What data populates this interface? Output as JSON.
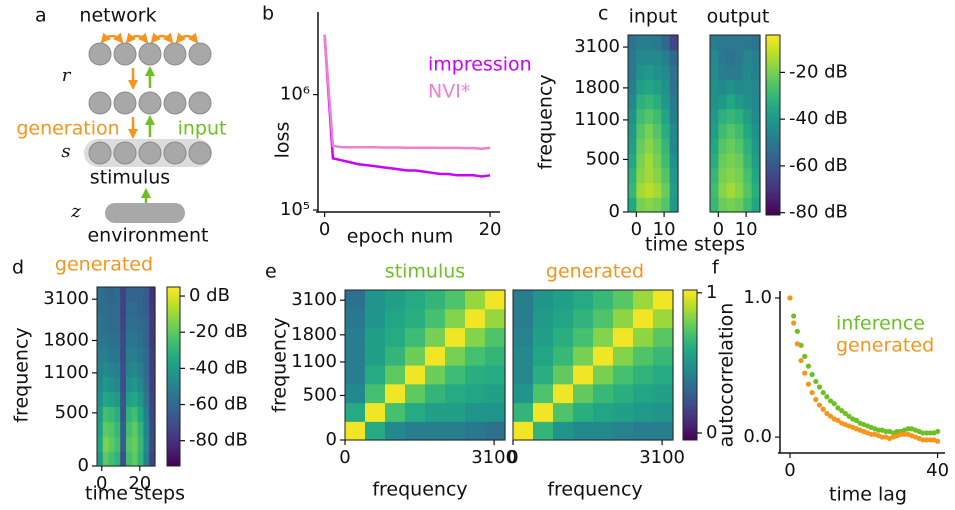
{
  "panels": [
    "a",
    "b",
    "c",
    "d",
    "e",
    "f"
  ],
  "diagram": {
    "network": "network",
    "r": "r",
    "s": "s",
    "z": "z",
    "generation": "generation",
    "input": "input",
    "stimulus": "stimulus",
    "environment": "environment"
  },
  "chart_data": [
    {
      "type": "line",
      "ylabel": "loss",
      "xlabel": "epoch num",
      "yscale": "log",
      "x": [
        0,
        1,
        2,
        3,
        4,
        5,
        6,
        7,
        8,
        9,
        10,
        11,
        12,
        13,
        14,
        15,
        16,
        17,
        18,
        19,
        20
      ],
      "xlim": [
        -0.8,
        21.2
      ],
      "ylim": [
        100000,
        5200000
      ],
      "xticks": [
        0,
        20
      ],
      "yticks": [
        {
          "value": 100000,
          "label": "10⁵"
        },
        {
          "value": 1000000,
          "label": "10⁶"
        }
      ],
      "series": [
        {
          "name": "impression",
          "color": "#cc00ff",
          "values": [
            3300000,
            280000,
            270000,
            260000,
            250000,
            245000,
            240000,
            235000,
            230000,
            225000,
            220000,
            220000,
            215000,
            210000,
            205000,
            205000,
            200000,
            200000,
            200000,
            195000,
            200000
          ]
        },
        {
          "name": "NVI*",
          "color": "#f07fd2",
          "values": [
            3300000,
            360000,
            350000,
            350000,
            350000,
            350000,
            350000,
            348000,
            348000,
            348000,
            347000,
            347000,
            346000,
            346000,
            345000,
            345000,
            345000,
            344000,
            344000,
            340000,
            345000
          ]
        }
      ]
    },
    {
      "type": "heatmap",
      "title": "input",
      "ylabel": "frequency",
      "xlabel": "time steps",
      "yscale": "mel",
      "colormap": "viridis",
      "xlim": [
        -3,
        15
      ],
      "ylim": [
        0,
        3600
      ],
      "xticks": [
        0,
        10
      ],
      "yticks": [
        0,
        500,
        1100,
        1800,
        3100
      ],
      "clim": [
        -81,
        -4
      ],
      "values": [
        [
          -35,
          -20,
          -18,
          -20,
          -25,
          -40
        ],
        [
          -30,
          -15,
          -12,
          -15,
          -22,
          -38
        ],
        [
          -32,
          -18,
          -15,
          -18,
          -25,
          -40
        ],
        [
          -35,
          -20,
          -15,
          -20,
          -28,
          -42
        ],
        [
          -38,
          -22,
          -18,
          -22,
          -30,
          -45
        ],
        [
          -40,
          -25,
          -20,
          -25,
          -33,
          -45
        ],
        [
          -42,
          -28,
          -25,
          -28,
          -36,
          -48
        ],
        [
          -45,
          -32,
          -30,
          -33,
          -40,
          -50
        ],
        [
          -48,
          -38,
          -35,
          -38,
          -42,
          -52
        ],
        [
          -50,
          -42,
          -40,
          -42,
          -45,
          -52
        ],
        [
          -50,
          -45,
          -45,
          -45,
          -48,
          -55
        ],
        [
          -52,
          -48,
          -48,
          -50,
          -55,
          -65
        ]
      ]
    },
    {
      "type": "heatmap",
      "title": "output",
      "yscale": "mel",
      "colormap": "viridis",
      "xlim": [
        -3,
        15
      ],
      "ylim": [
        0,
        3600
      ],
      "xticks": [
        0,
        10
      ],
      "clim": [
        -81,
        -4
      ],
      "cticks": [
        {
          "value": -20,
          "label": "-20 dB"
        },
        {
          "value": -40,
          "label": "-40 dB"
        },
        {
          "value": -60,
          "label": "-60 dB"
        },
        {
          "value": -80,
          "label": "-80 dB"
        }
      ],
      "values": [
        [
          -30,
          -22,
          -20,
          -22,
          -28,
          -35
        ],
        [
          -28,
          -18,
          -15,
          -18,
          -25,
          -33
        ],
        [
          -30,
          -20,
          -18,
          -20,
          -27,
          -35
        ],
        [
          -33,
          -22,
          -20,
          -22,
          -30,
          -38
        ],
        [
          -35,
          -25,
          -22,
          -25,
          -32,
          -40
        ],
        [
          -38,
          -28,
          -25,
          -28,
          -35,
          -42
        ],
        [
          -40,
          -32,
          -30,
          -32,
          -38,
          -45
        ],
        [
          -42,
          -40,
          -35,
          -40,
          -42,
          -46
        ],
        [
          -42,
          -45,
          -42,
          -45,
          -44,
          -46
        ],
        [
          -44,
          -48,
          -50,
          -48,
          -45,
          -47
        ],
        [
          -45,
          -50,
          -52,
          -50,
          -46,
          -48
        ],
        [
          -48,
          -50,
          -50,
          -50,
          -50,
          -52
        ]
      ]
    },
    {
      "type": "heatmap",
      "title": "generated",
      "title_color": "#f7941d",
      "ylabel": "frequency",
      "xlabel": "time steps",
      "yscale": "mel",
      "colormap": "viridis",
      "xlim": [
        -2.5,
        28
      ],
      "ylim": [
        0,
        3600
      ],
      "xticks": [
        0,
        20
      ],
      "yticks": [
        0,
        500,
        1100,
        1800,
        3100
      ],
      "clim": [
        -94,
        5
      ],
      "cticks": [
        {
          "value": 0,
          "label": "0 dB"
        },
        {
          "value": -20,
          "label": "-20 dB"
        },
        {
          "value": -40,
          "label": "-40 dB"
        },
        {
          "value": -60,
          "label": "-60 dB"
        },
        {
          "value": -80,
          "label": "-80 dB"
        }
      ],
      "values": [
        [
          -40,
          -20,
          -25,
          -30,
          -70,
          -25,
          -20,
          -30,
          -50,
          -75
        ],
        [
          -35,
          -15,
          -20,
          -25,
          -65,
          -22,
          -18,
          -28,
          -48,
          -72
        ],
        [
          -38,
          -20,
          -22,
          -28,
          -65,
          -25,
          -20,
          -30,
          -50,
          -72
        ],
        [
          -40,
          -25,
          -28,
          -32,
          -68,
          -30,
          -25,
          -35,
          -52,
          -74
        ],
        [
          -45,
          -35,
          -38,
          -40,
          -68,
          -38,
          -35,
          -42,
          -55,
          -75
        ],
        [
          -48,
          -42,
          -45,
          -48,
          -70,
          -45,
          -42,
          -48,
          -58,
          -76
        ],
        [
          -50,
          -48,
          -50,
          -52,
          -70,
          -50,
          -48,
          -52,
          -60,
          -76
        ],
        [
          -52,
          -52,
          -55,
          -55,
          -72,
          -52,
          -52,
          -55,
          -60,
          -76
        ],
        [
          -55,
          -55,
          -58,
          -58,
          -72,
          -55,
          -55,
          -58,
          -62,
          -78
        ],
        [
          -55,
          -58,
          -60,
          -60,
          -74,
          -58,
          -58,
          -60,
          -62,
          -78
        ],
        [
          -58,
          -58,
          -60,
          -60,
          -75,
          -60,
          -60,
          -62,
          -65,
          -78
        ],
        [
          -58,
          -60,
          -62,
          -60,
          -75,
          -62,
          -62,
          -62,
          -65,
          -80
        ]
      ]
    },
    {
      "type": "heatmap",
      "title": "stimulus",
      "title_color": "#6cc024",
      "ylabel": "frequency",
      "xlabel": "frequency",
      "xscale": "mel",
      "yscale": "mel",
      "colormap": "viridis",
      "xlim": [
        0,
        3600
      ],
      "ylim": [
        0,
        3600
      ],
      "xticks": [
        0,
        3100
      ],
      "yticks": [
        0,
        500,
        1100,
        1800,
        3100
      ],
      "clim": [
        -0.05,
        1.02
      ],
      "values": [
        [
          1.0,
          0.6,
          0.45,
          0.4,
          0.4,
          0.4,
          0.38,
          0.35
        ],
        [
          0.6,
          1.0,
          0.7,
          0.6,
          0.55,
          0.55,
          0.5,
          0.5
        ],
        [
          0.45,
          0.7,
          1.0,
          0.75,
          0.65,
          0.6,
          0.58,
          0.55
        ],
        [
          0.4,
          0.6,
          0.75,
          1.0,
          0.78,
          0.68,
          0.62,
          0.6
        ],
        [
          0.4,
          0.55,
          0.65,
          0.78,
          1.0,
          0.8,
          0.7,
          0.65
        ],
        [
          0.4,
          0.55,
          0.6,
          0.68,
          0.8,
          1.0,
          0.82,
          0.72
        ],
        [
          0.38,
          0.5,
          0.58,
          0.62,
          0.7,
          0.82,
          1.0,
          0.85
        ],
        [
          0.35,
          0.5,
          0.55,
          0.6,
          0.65,
          0.72,
          0.85,
          1.0
        ]
      ]
    },
    {
      "type": "heatmap",
      "title": "generated",
      "title_color": "#f7941d",
      "xlabel": "frequency",
      "xscale": "mel",
      "yscale": "mel",
      "colormap": "viridis",
      "xlim": [
        0,
        3600
      ],
      "ylim": [
        0,
        3600
      ],
      "xticks": [
        0,
        3100
      ],
      "clim": [
        -0.05,
        1.02
      ],
      "cticks": [
        1,
        0
      ],
      "values": [
        [
          1.0,
          0.65,
          0.5,
          0.45,
          0.45,
          0.42,
          0.4,
          0.4
        ],
        [
          0.65,
          1.0,
          0.72,
          0.62,
          0.58,
          0.55,
          0.52,
          0.5
        ],
        [
          0.5,
          0.72,
          1.0,
          0.76,
          0.66,
          0.62,
          0.58,
          0.55
        ],
        [
          0.45,
          0.62,
          0.76,
          1.0,
          0.8,
          0.7,
          0.64,
          0.6
        ],
        [
          0.45,
          0.58,
          0.66,
          0.8,
          1.0,
          0.82,
          0.72,
          0.66
        ],
        [
          0.42,
          0.55,
          0.62,
          0.7,
          0.82,
          1.0,
          0.84,
          0.74
        ],
        [
          0.4,
          0.52,
          0.58,
          0.64,
          0.72,
          0.84,
          1.0,
          0.86
        ],
        [
          0.4,
          0.5,
          0.55,
          0.6,
          0.66,
          0.74,
          0.86,
          1.0
        ]
      ]
    },
    {
      "type": "scatter",
      "ylabel": "autocorrelation",
      "xlabel": "time lag",
      "x": [
        0,
        1,
        2,
        3,
        4,
        5,
        6,
        7,
        8,
        9,
        10,
        11,
        12,
        13,
        14,
        15,
        16,
        17,
        18,
        19,
        20,
        21,
        22,
        23,
        24,
        25,
        26,
        27,
        28,
        29,
        30,
        31,
        32,
        33,
        34,
        35,
        36,
        37,
        38,
        39,
        40
      ],
      "xlim": [
        -2.7,
        42
      ],
      "ylim": [
        -0.1,
        1.05
      ],
      "xticks": [
        0,
        40
      ],
      "yticks": [
        {
          "value": 0,
          "label": "0.0"
        },
        {
          "value": 1,
          "label": "1.0"
        }
      ],
      "series": [
        {
          "name": "inference",
          "color": "#6cc024",
          "values": [
            1.0,
            0.87,
            0.76,
            0.66,
            0.58,
            0.51,
            0.45,
            0.4,
            0.36,
            0.32,
            0.29,
            0.26,
            0.24,
            0.21,
            0.19,
            0.17,
            0.15,
            0.13,
            0.12,
            0.1,
            0.09,
            0.08,
            0.07,
            0.06,
            0.05,
            0.05,
            0.04,
            0.04,
            0.03,
            0.04,
            0.04,
            0.05,
            0.06,
            0.06,
            0.05,
            0.04,
            0.03,
            0.03,
            0.03,
            0.03,
            0.04
          ]
        },
        {
          "name": "generated",
          "color": "#f7941d",
          "values": [
            1.0,
            0.82,
            0.67,
            0.55,
            0.46,
            0.38,
            0.32,
            0.27,
            0.23,
            0.2,
            0.17,
            0.15,
            0.13,
            0.12,
            0.1,
            0.09,
            0.08,
            0.07,
            0.06,
            0.05,
            0.04,
            0.03,
            0.02,
            0.02,
            0.01,
            0.0,
            0.0,
            -0.01,
            0.0,
            0.01,
            0.02,
            0.02,
            0.02,
            0.01,
            0.0,
            -0.01,
            -0.02,
            -0.02,
            -0.02,
            -0.02,
            -0.03
          ]
        }
      ]
    }
  ]
}
